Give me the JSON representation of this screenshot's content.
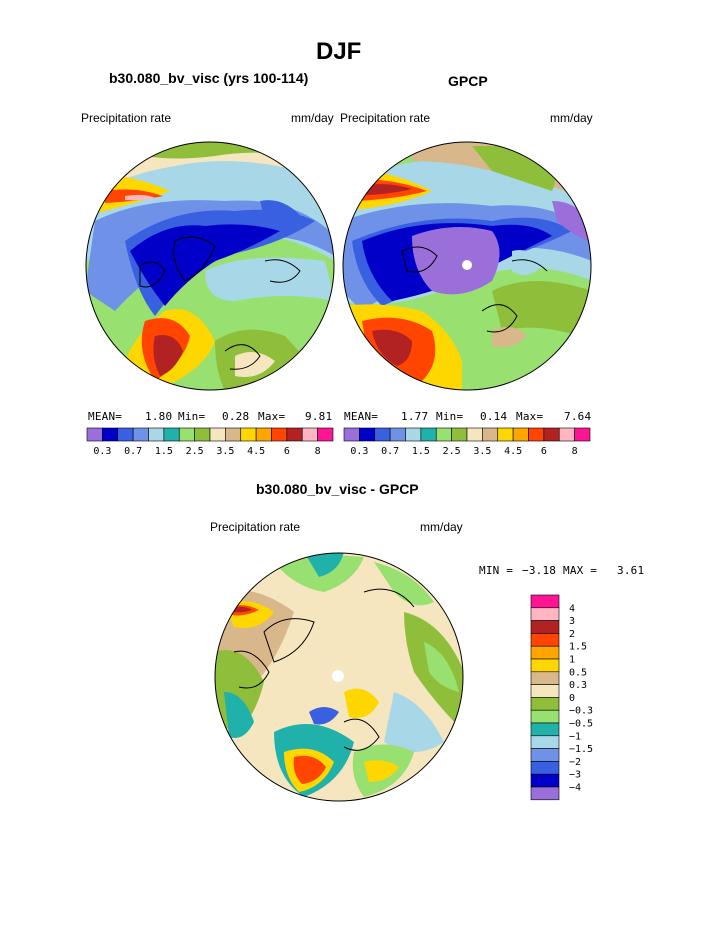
{
  "figure": {
    "title": "DJF"
  },
  "left_panel": {
    "title": "b30.080_bv_visc (yrs 100-114)",
    "variable": "Precipitation rate",
    "units": "mm/day",
    "stats": {
      "mean_label": "MEAN=",
      "mean": "1.80",
      "min_label": "Min=",
      "min": "0.28",
      "max_label": "Max=",
      "max": "9.81"
    }
  },
  "right_panel": {
    "title": "GPCP",
    "variable": "Precipitation rate",
    "units": "mm/day",
    "stats": {
      "mean_label": "MEAN=",
      "mean": "1.77",
      "min_label": "Min=",
      "min": "0.14",
      "max_label": "Max=",
      "max": "7.64"
    }
  },
  "colorbar_top": {
    "colors": [
      "#9b6fd9",
      "#0000c8",
      "#3860e0",
      "#6f92e8",
      "#a8d8e8",
      "#20b2aa",
      "#98e070",
      "#8fbf3a",
      "#f5e6c0",
      "#d8b88a",
      "#ffd700",
      "#ffa500",
      "#ff4500",
      "#b22222",
      "#ffb6c1",
      "#ff1493"
    ],
    "tick_labels": [
      "0.3",
      "0.7",
      "1.5",
      "2.5",
      "3.5",
      "4.5",
      "6",
      "8"
    ]
  },
  "diff_panel": {
    "title": "b30.080_bv_visc - GPCP",
    "variable": "Precipitation rate",
    "units": "mm/day",
    "min_label": "MIN =",
    "min": "−3.18",
    "max_label": "MAX =",
    "max": "3.61"
  },
  "colorbar_diff": {
    "colors_top_to_bottom": [
      "#ff1493",
      "#ffb6c1",
      "#b22222",
      "#ff4500",
      "#ffa500",
      "#ffd700",
      "#d8b88a",
      "#f5e6c0",
      "#8fbf3a",
      "#98e070",
      "#20b2aa",
      "#a8d8e8",
      "#6f92e8",
      "#3860e0",
      "#0000c8",
      "#9b6fd9"
    ],
    "tick_labels": [
      "4",
      "3",
      "2",
      "1.5",
      "1",
      "0.5",
      "0.3",
      "0",
      "−0.3",
      "−0.5",
      "−1",
      "−1.5",
      "−2",
      "−3",
      "−4"
    ]
  }
}
